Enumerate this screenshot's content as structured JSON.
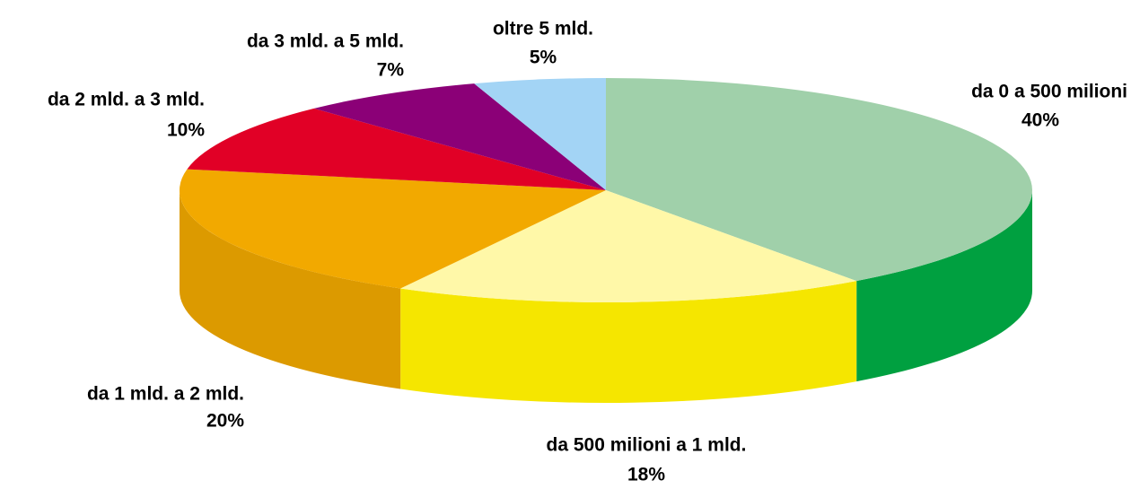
{
  "chart_data": {
    "type": "pie",
    "categories": [
      "da 0 a 500 milioni",
      "da 500 milioni a 1 mld.",
      "da 1 mld. a 2 mld.",
      "da 2 mld. a 3 mld.",
      "da 3 mld. a 5 mld.",
      "oltre 5 mld."
    ],
    "values": [
      40,
      18,
      20,
      10,
      7,
      5
    ],
    "value_labels": [
      "40%",
      "18%",
      "20%",
      "10%",
      "7%",
      "5%"
    ],
    "colors": [
      "#a0d0aa",
      "#fff8a8",
      "#f2a900",
      "#e10026",
      "#8b0077",
      "#a3d4f5"
    ],
    "side_colors": [
      "#00a040",
      "#f5e600",
      "#dc9a00",
      "#b8001e",
      "#6a005a",
      "#7fb8de"
    ]
  }
}
